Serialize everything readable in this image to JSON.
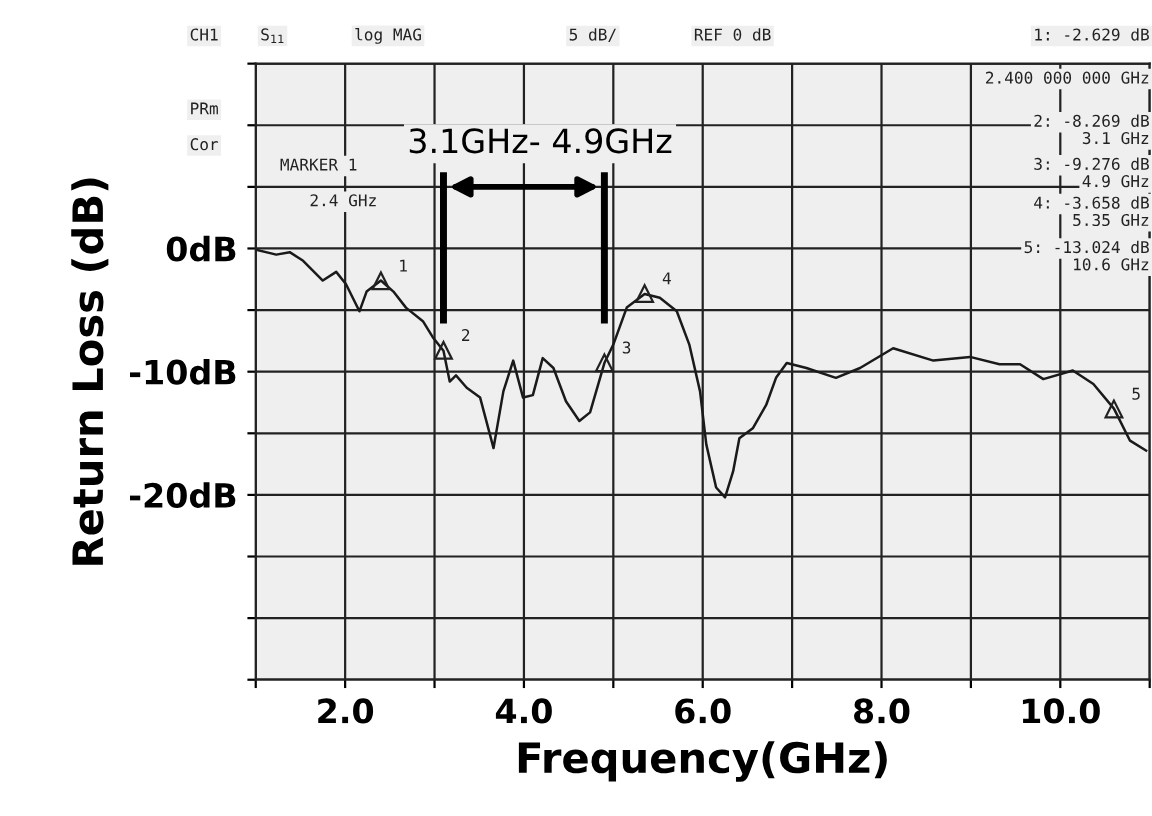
{
  "chart_data": {
    "type": "line",
    "xlabel": "Frequency(GHz)",
    "ylabel": "Return Loss (dB)",
    "x": [
      1.0,
      1.23,
      1.38,
      1.53,
      1.75,
      1.9,
      2.01,
      2.16,
      2.24,
      2.4,
      2.54,
      2.68,
      2.87,
      2.98,
      3.1,
      3.17,
      3.24,
      3.36,
      3.51,
      3.66,
      3.77,
      3.88,
      3.99,
      4.1,
      4.21,
      4.33,
      4.47,
      4.62,
      4.74,
      4.9,
      5.0,
      5.15,
      5.35,
      5.52,
      5.71,
      5.85,
      5.97,
      6.04,
      6.15,
      6.25,
      6.34,
      6.41,
      6.56,
      6.71,
      6.82,
      6.94,
      7.16,
      7.49,
      7.76,
      8.13,
      8.58,
      8.99,
      9.32,
      9.55,
      9.81,
      10.14,
      10.37,
      10.6,
      10.78,
      10.96
    ],
    "series": [
      {
        "color": "#1a1a1a",
        "values": [
          -0.1,
          -0.5,
          -0.3,
          -1.0,
          -2.6,
          -1.9,
          -2.9,
          -5.1,
          -3.5,
          -2.6,
          -3.5,
          -4.8,
          -5.9,
          -7.2,
          -8.3,
          -10.8,
          -10.3,
          -11.3,
          -12.1,
          -16.2,
          -11.6,
          -9.1,
          -12.1,
          -11.9,
          -8.9,
          -9.7,
          -12.4,
          -14.0,
          -13.3,
          -9.3,
          -7.8,
          -4.8,
          -3.7,
          -4.0,
          -5.1,
          -7.8,
          -11.6,
          -15.9,
          -19.4,
          -20.2,
          -18.1,
          -15.4,
          -14.6,
          -12.7,
          -10.5,
          -9.3,
          -9.7,
          -10.5,
          -9.7,
          -8.1,
          -9.1,
          -8.8,
          -9.4,
          -9.4,
          -10.6,
          -9.9,
          -11.0,
          -13.0,
          -15.6,
          -16.4
        ]
      }
    ],
    "xlim": [
      1,
      11
    ],
    "ylim": [
      -35,
      15
    ],
    "xticks": [
      {
        "value": 1,
        "label": null
      },
      {
        "value": 2,
        "label": "2.0"
      },
      {
        "value": 3,
        "label": null
      },
      {
        "value": 4,
        "label": "4.0"
      },
      {
        "value": 5,
        "label": null
      },
      {
        "value": 6,
        "label": "6.0"
      },
      {
        "value": 7,
        "label": null
      },
      {
        "value": 8,
        "label": "8.0"
      },
      {
        "value": 9,
        "label": null
      },
      {
        "value": 10,
        "label": "10.0"
      },
      {
        "value": 11,
        "label": null
      }
    ],
    "yticks": [
      {
        "value": 15,
        "label": null
      },
      {
        "value": 10,
        "label": null
      },
      {
        "value": 5,
        "label": null
      },
      {
        "value": 0,
        "label": "0dB"
      },
      {
        "value": -5,
        "label": null
      },
      {
        "value": -10,
        "label": "-10dB"
      },
      {
        "value": -15,
        "label": null
      },
      {
        "value": -20,
        "label": "-20dB"
      },
      {
        "value": -25,
        "label": null
      },
      {
        "value": -30,
        "label": null
      },
      {
        "value": -35,
        "label": null
      }
    ],
    "grid": true,
    "ref_lines": [
      {
        "axis": "x",
        "value": 3.1,
        "color": "#000000"
      },
      {
        "axis": "x",
        "value": 4.9,
        "color": "#000000"
      }
    ],
    "annotations": [
      "CH1",
      "S$_{11}$",
      "log MAG",
      "5 dB/",
      "REF 0 dB",
      "1: -2.629 dB",
      "2.400 000 000 GHz",
      "PRm",
      "Cor",
      "MARKER 1",
      "2.4 GHz",
      "2: -8.269 dB",
      "3.1 GHz",
      "3: -9.276 dB",
      "4.9 GHz",
      "4: -3.658 dB",
      "5.35 GHz",
      "5: -13.024 dB",
      "10.6 GHz",
      "3.1GHz- 4.9GHz",
      {
        "text": "1",
        "x": 2.4,
        "y": -2.629
      },
      {
        "text": "2",
        "x": 3.1,
        "y": -8.269
      },
      {
        "text": "3",
        "x": 4.9,
        "y": -9.276
      },
      {
        "text": "4",
        "x": 5.35,
        "y": -3.658
      },
      {
        "text": "5",
        "x": 10.6,
        "y": -13.024
      }
    ]
  }
}
